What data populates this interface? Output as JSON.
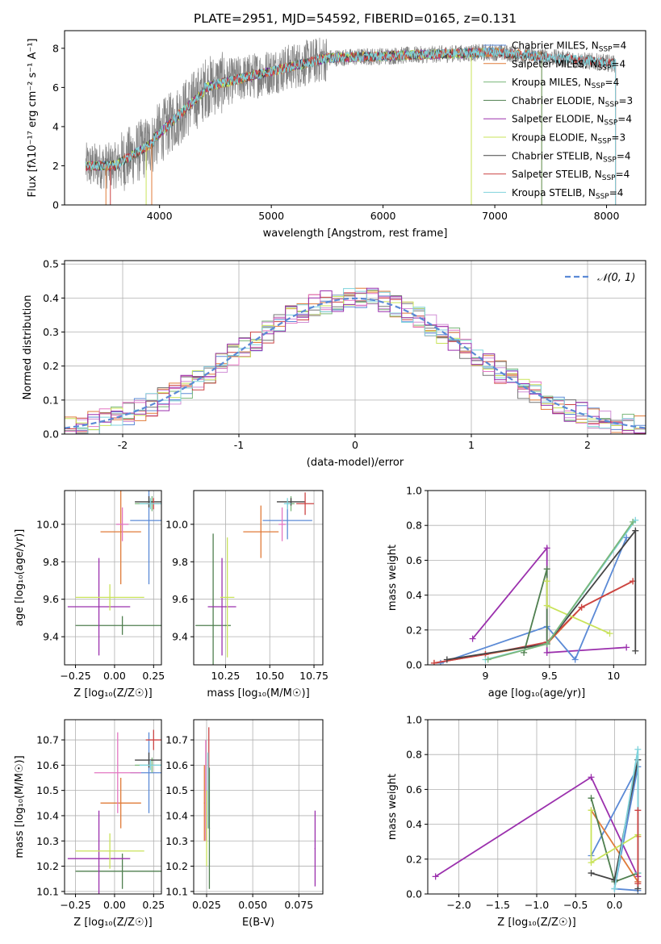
{
  "colors": [
    "#5b8ad6",
    "#e07b39",
    "#7ab77a",
    "#d18fd6",
    "#cc4444",
    "#777777",
    "#e377c2",
    "#c9e35a",
    "#7fd3dc",
    "#9b30ad",
    "#444444",
    "#4f7f4f"
  ],
  "chart_data": [
    {
      "type": "line",
      "title": "PLATE=2951, MJD=54592, FIBERID=0165, z=0.131",
      "xlabel": "wavelength [Angstrom, rest frame]",
      "ylabel": "Flux [fλ10⁻¹⁷ erg cm⁻² s⁻¹ A⁻¹]",
      "xlim": [
        3150,
        8350
      ],
      "ylim": [
        0,
        8.9
      ],
      "xticks": [
        4000,
        5000,
        6000,
        7000,
        8000
      ],
      "yticks": [
        0,
        2,
        4,
        6,
        8
      ],
      "data_wavelength_range": [
        3340,
        8080
      ],
      "legend_position": "right",
      "series": [
        {
          "name": "Chabrier MILES, N_SSP=4",
          "color": "#5b8ad6",
          "end": 7420
        },
        {
          "name": "Salpeter MILES, N_SSP=4",
          "color": "#e07b39",
          "end": 7420
        },
        {
          "name": "Kroupa MILES, N_SSP=4",
          "color": "#7ab77a",
          "end": 7420
        },
        {
          "name": "Chabrier ELODIE, N_SSP=3",
          "color": "#4f7f4f",
          "end": 6790
        },
        {
          "name": "Salpeter ELODIE, N_SSP=4",
          "color": "#9b30ad",
          "end": 6790
        },
        {
          "name": "Kroupa ELODIE, N_SSP=3",
          "color": "#c9e35a",
          "end": 6790
        },
        {
          "name": "Chabrier STELIB, N_SSP=4",
          "color": "#444444",
          "end": 8080
        },
        {
          "name": "Salpeter STELIB, N_SSP=4",
          "color": "#cc4444",
          "end": 8080
        },
        {
          "name": "Kroupa STELIB, N_SSP=4",
          "color": "#7fd3dc",
          "end": 8080
        }
      ],
      "observed_color": "#808080"
    },
    {
      "type": "histogram",
      "xlabel": "(data-model)/error",
      "ylabel": "Normed distribution",
      "xlim": [
        -2.5,
        2.5
      ],
      "ylim": [
        0,
        0.51
      ],
      "xticks": [
        -2,
        -1,
        0,
        1,
        2
      ],
      "yticks": [
        0.0,
        0.1,
        0.2,
        0.3,
        0.4,
        0.5
      ],
      "legend": "𝒩(0, 1)",
      "legend_position": "top-right",
      "reference_curve": "normal(0,1)",
      "bin_width": 0.1
    },
    {
      "type": "scatter",
      "xlabel": "Z [log₁₀(Z/Z☉)]",
      "ylabel": "age  [log₁₀(age/yr)]",
      "xlim": [
        -0.32,
        0.3
      ],
      "ylim": [
        9.25,
        10.18
      ],
      "xticks": [
        -0.25,
        0.0,
        0.25
      ],
      "xtick_labels": [
        "−0.25",
        "0.00",
        "0.25"
      ],
      "yticks": [
        9.4,
        9.6,
        9.8,
        10.0
      ],
      "points": [
        {
          "color": "#5b8ad6",
          "x": 0.22,
          "xerr": 0.12,
          "y": 10.02,
          "yerr": 0.34
        },
        {
          "color": "#e07b39",
          "x": 0.04,
          "xerr": 0.13,
          "y": 9.96,
          "yerr": 0.28
        },
        {
          "color": "#7ab77a",
          "x": 0.24,
          "xerr": 0.11,
          "y": 10.11,
          "yerr": 0.04
        },
        {
          "color": "#4f7f4f",
          "x": 0.05,
          "xerr": 0.3,
          "y": 9.46,
          "yerr": 0.05
        },
        {
          "color": "#9b30ad",
          "x": -0.1,
          "xerr": 0.2,
          "y": 9.56,
          "yerr": 0.26
        },
        {
          "color": "#c9e35a",
          "x": -0.03,
          "xerr": 0.22,
          "y": 9.61,
          "yerr": 0.07
        },
        {
          "color": "#444444",
          "x": 0.22,
          "xerr": 0.09,
          "y": 10.12,
          "yerr": 0.03
        },
        {
          "color": "#cc4444",
          "x": 0.25,
          "xerr": 0.05,
          "y": 10.11,
          "yerr": 0.03
        },
        {
          "color": "#7fd3dc",
          "x": 0.23,
          "xerr": 0.07,
          "y": 10.11,
          "yerr": 0.03
        },
        {
          "color": "#e377c2",
          "x": 0.05,
          "xerr": 0.04,
          "y": 10.0,
          "yerr": 0.09
        }
      ]
    },
    {
      "type": "scatter",
      "xlabel": "mass [log₁₀(M/M☉)]",
      "ylabel": "",
      "xlim": [
        10.07,
        10.8
      ],
      "ylim": [
        9.25,
        10.18
      ],
      "xticks": [
        10.25,
        10.5,
        10.75
      ],
      "xtick_labels": [
        "10.25",
        "10.50",
        "10.75"
      ],
      "yticks": [
        9.4,
        9.6,
        9.8,
        10.0
      ],
      "points": [
        {
          "color": "#5b8ad6",
          "x": 10.6,
          "xerr": 0.14,
          "y": 10.02,
          "yerr": 0.1
        },
        {
          "color": "#e07b39",
          "x": 10.45,
          "xerr": 0.1,
          "y": 9.96,
          "yerr": 0.14
        },
        {
          "color": "#7ab77a",
          "x": 10.62,
          "xerr": 0.02,
          "y": 10.11,
          "yerr": 0.04
        },
        {
          "color": "#4f7f4f",
          "x": 10.18,
          "xerr": 0.1,
          "y": 9.46,
          "yerr": 0.49
        },
        {
          "color": "#9b30ad",
          "x": 10.23,
          "xerr": 0.08,
          "y": 9.56,
          "yerr": 0.26
        },
        {
          "color": "#c9e35a",
          "x": 10.26,
          "xerr": 0.04,
          "y": 9.61,
          "yerr": 0.32
        },
        {
          "color": "#444444",
          "x": 10.62,
          "xerr": 0.08,
          "y": 10.12,
          "yerr": 0.02
        },
        {
          "color": "#cc4444",
          "x": 10.7,
          "xerr": 0.05,
          "y": 10.11,
          "yerr": 0.06
        },
        {
          "color": "#7fd3dc",
          "x": 10.6,
          "xerr": 0.02,
          "y": 10.11,
          "yerr": 0.03
        },
        {
          "color": "#e377c2",
          "x": 10.57,
          "xerr": 0.02,
          "y": 10.0,
          "yerr": 0.09
        }
      ]
    },
    {
      "type": "line",
      "xlabel": "age  [log₁₀(age/yr)]",
      "ylabel": "mass weight",
      "xlim": [
        8.55,
        10.25
      ],
      "ylim": [
        0,
        1.0
      ],
      "xticks": [
        9.0,
        9.5,
        10.0
      ],
      "yticks": [
        0.0,
        0.2,
        0.4,
        0.6,
        0.8,
        1.0
      ],
      "series": [
        {
          "color": "#9b30ad",
          "x": [
            8.9,
            9.48,
            9.48,
            10.1
          ],
          "y": [
            0.15,
            0.67,
            0.07,
            0.1
          ]
        },
        {
          "color": "#5b8ad6",
          "x": [
            8.65,
            9.48,
            9.7,
            10.1
          ],
          "y": [
            0.01,
            0.22,
            0.03,
            0.73
          ]
        },
        {
          "color": "#e07b39",
          "x": [
            8.6,
            9.0,
            9.48,
            9.75,
            10.15
          ],
          "y": [
            0.01,
            0.06,
            0.12,
            0.33,
            0.48
          ]
        },
        {
          "color": "#cc4444",
          "x": [
            8.6,
            9.0,
            9.48,
            9.75,
            10.15
          ],
          "y": [
            0.01,
            0.06,
            0.13,
            0.33,
            0.48
          ]
        },
        {
          "color": "#4f7f4f",
          "x": [
            9.3,
            9.48,
            9.48
          ],
          "y": [
            0.07,
            0.55,
            0.12
          ]
        },
        {
          "color": "#c9e35a",
          "x": [
            9.48,
            9.48,
            9.97
          ],
          "y": [
            0.48,
            0.34,
            0.18
          ]
        },
        {
          "color": "#444444",
          "x": [
            8.7,
            9.48,
            10.17,
            10.17
          ],
          "y": [
            0.03,
            0.12,
            0.77,
            0.08
          ]
        },
        {
          "color": "#7fd3dc",
          "x": [
            9.0,
            9.48,
            10.17
          ],
          "y": [
            0.03,
            0.12,
            0.83
          ]
        },
        {
          "color": "#7ab77a",
          "x": [
            9.02,
            9.48,
            10.15
          ],
          "y": [
            0.03,
            0.12,
            0.82
          ]
        }
      ]
    },
    {
      "type": "scatter",
      "xlabel": "Z [log₁₀(Z/Z☉)]",
      "ylabel": "mass [log₁₀(M/M☉)]",
      "xlim": [
        -0.32,
        0.3
      ],
      "ylim": [
        10.09,
        10.78
      ],
      "xticks": [
        -0.25,
        0.0,
        0.25
      ],
      "xtick_labels": [
        "−0.25",
        "0.00",
        "0.25"
      ],
      "yticks": [
        10.1,
        10.2,
        10.3,
        10.4,
        10.5,
        10.6,
        10.7
      ],
      "points": [
        {
          "color": "#5b8ad6",
          "x": 0.22,
          "xerr": 0.12,
          "y": 10.57,
          "yerr": 0.16
        },
        {
          "color": "#e07b39",
          "x": 0.04,
          "xerr": 0.13,
          "y": 10.45,
          "yerr": 0.1
        },
        {
          "color": "#7ab77a",
          "x": 0.24,
          "xerr": 0.11,
          "y": 10.6,
          "yerr": 0.03
        },
        {
          "color": "#4f7f4f",
          "x": 0.05,
          "xerr": 0.3,
          "y": 10.18,
          "yerr": 0.07
        },
        {
          "color": "#9b30ad",
          "x": -0.1,
          "xerr": 0.2,
          "y": 10.23,
          "yerr": 0.19
        },
        {
          "color": "#c9e35a",
          "x": -0.03,
          "xerr": 0.22,
          "y": 10.26,
          "yerr": 0.07
        },
        {
          "color": "#444444",
          "x": 0.22,
          "xerr": 0.09,
          "y": 10.62,
          "yerr": 0.03
        },
        {
          "color": "#cc4444",
          "x": 0.25,
          "xerr": 0.05,
          "y": 10.7,
          "yerr": 0.04
        },
        {
          "color": "#7fd3dc",
          "x": 0.23,
          "xerr": 0.07,
          "y": 10.6,
          "yerr": 0.02
        },
        {
          "color": "#e377c2",
          "x": 0.02,
          "xerr": 0.15,
          "y": 10.57,
          "yerr": 0.16
        }
      ]
    },
    {
      "type": "scatter",
      "xlabel": "E(B-V)",
      "ylabel": "",
      "xlim": [
        0.018,
        0.088
      ],
      "ylim": [
        10.09,
        10.78
      ],
      "xticks": [
        0.025,
        0.05,
        0.075
      ],
      "xtick_labels": [
        "0.025",
        "0.050",
        "0.075"
      ],
      "yticks": [
        10.1,
        10.2,
        10.3,
        10.4,
        10.5,
        10.6,
        10.7
      ],
      "points": [
        {
          "color": "#e377c2",
          "x": 0.0245,
          "xerr": 0.0003,
          "y": 10.5,
          "yerr": 0.2
        },
        {
          "color": "#e07b39",
          "x": 0.0238,
          "xerr": 0.0003,
          "y": 10.45,
          "yerr": 0.15
        },
        {
          "color": "#cc4444",
          "x": 0.0262,
          "xerr": 0.0003,
          "y": 10.55,
          "yerr": 0.2
        },
        {
          "color": "#c9e35a",
          "x": 0.025,
          "xerr": 0.0003,
          "y": 10.35,
          "yerr": 0.15
        },
        {
          "color": "#4f7f4f",
          "x": 0.0265,
          "xerr": 0.0003,
          "y": 10.35,
          "yerr": 0.24
        },
        {
          "color": "#7fd3dc",
          "x": 0.0258,
          "xerr": 0.0003,
          "y": 10.5,
          "yerr": 0.15
        },
        {
          "color": "#9b30ad",
          "x": 0.0838,
          "xerr": 0.0003,
          "y": 10.27,
          "yerr": 0.15
        }
      ]
    },
    {
      "type": "line",
      "xlabel": "Z [log₁₀(Z/Z☉)]",
      "ylabel": "mass weight",
      "xlim": [
        -2.4,
        0.4
      ],
      "ylim": [
        0,
        1.0
      ],
      "xticks": [
        -2.0,
        -1.5,
        -1.0,
        -0.5,
        0.0
      ],
      "xtick_labels": [
        "−2.0",
        "−1.5",
        "−1.0",
        "−0.5",
        "0.0"
      ],
      "yticks": [
        0.0,
        0.2,
        0.4,
        0.6,
        0.8,
        1.0
      ],
      "series": [
        {
          "color": "#9b30ad",
          "x": [
            -2.3,
            -0.3,
            0.3,
            0.3
          ],
          "y": [
            0.1,
            0.67,
            0.1,
            0.07
          ]
        },
        {
          "color": "#5b8ad6",
          "x": [
            -0.3,
            0.3,
            0.0,
            0.3
          ],
          "y": [
            0.22,
            0.73,
            0.03,
            0.02
          ]
        },
        {
          "color": "#e07b39",
          "x": [
            -0.3,
            0.3,
            0.3
          ],
          "y": [
            0.48,
            0.07,
            0.33
          ]
        },
        {
          "color": "#4f7f4f",
          "x": [
            -0.3,
            0.0,
            0.3
          ],
          "y": [
            0.55,
            0.07,
            0.12
          ]
        },
        {
          "color": "#c9e35a",
          "x": [
            -0.3,
            -0.3,
            0.3
          ],
          "y": [
            0.48,
            0.18,
            0.34
          ]
        },
        {
          "color": "#444444",
          "x": [
            -0.3,
            0.0,
            0.3,
            0.3
          ],
          "y": [
            0.12,
            0.08,
            0.77,
            0.03
          ]
        },
        {
          "color": "#7fd3dc",
          "x": [
            0.0,
            0.3,
            0.3
          ],
          "y": [
            0.03,
            0.83,
            0.12
          ]
        },
        {
          "color": "#cc4444",
          "x": [
            0.3,
            0.3
          ],
          "y": [
            0.48,
            0.06
          ]
        }
      ]
    }
  ]
}
